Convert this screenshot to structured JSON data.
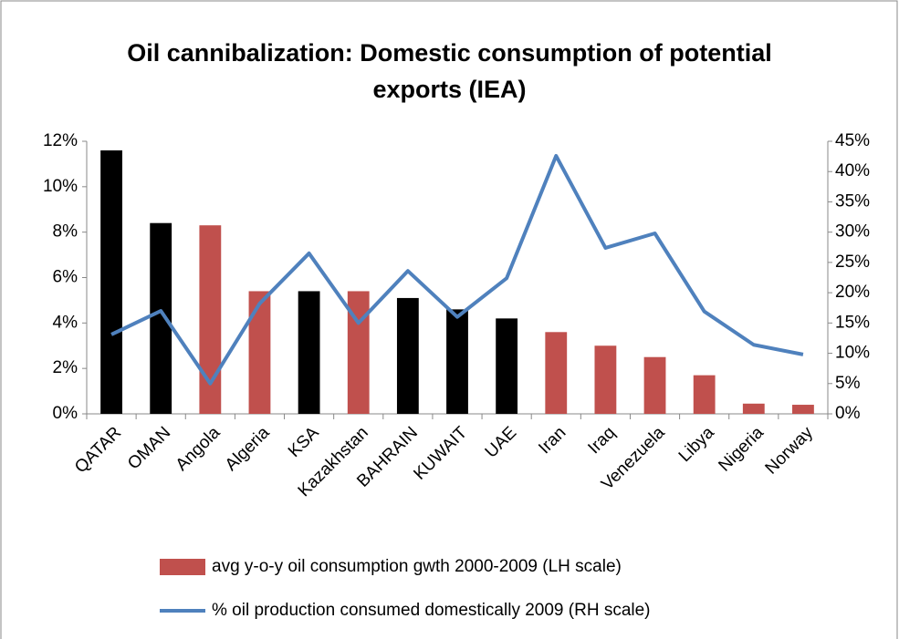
{
  "chart_data": {
    "type": "bar-line",
    "title": "Oil cannibalization: Domestic consumption of potential exports (IEA)",
    "categories": [
      "QATAR",
      "OMAN",
      "Angola",
      "Algeria",
      "KSA",
      "Kazakhstan",
      "BAHRAIN",
      "KUWAIT",
      "UAE",
      "Iran",
      "Iraq",
      "Venezuela",
      "Libya",
      "Nigeria",
      "Norway"
    ],
    "series": [
      {
        "name": "avg y-o-y oil consumption gwth 2000-2009 (LH scale)",
        "type": "bar",
        "color": "#c0504d",
        "colors": [
          "#000000",
          "#000000",
          "#c0504d",
          "#c0504d",
          "#000000",
          "#c0504d",
          "#000000",
          "#000000",
          "#000000",
          "#c0504d",
          "#c0504d",
          "#c0504d",
          "#c0504d",
          "#c0504d",
          "#c0504d"
        ],
        "values": [
          11.6,
          8.4,
          8.3,
          5.4,
          5.4,
          5.4,
          5.1,
          4.6,
          4.2,
          3.6,
          3.0,
          2.5,
          1.7,
          0.45,
          0.4
        ]
      },
      {
        "name": "% oil production consumed domestically 2009 (RH scale)",
        "type": "line",
        "axis": "y2",
        "color": "#4f81bd",
        "values": [
          13.1,
          17,
          5,
          18.2,
          26.5,
          15,
          23.6,
          16,
          22.4,
          42.6,
          27.4,
          29.8,
          16.9,
          11.4,
          9.8
        ]
      }
    ],
    "ylim": [
      0,
      12
    ],
    "yticks": [
      {
        "value": 0,
        "label": "0%"
      },
      {
        "value": 2,
        "label": "2%"
      },
      {
        "value": 4,
        "label": "4%"
      },
      {
        "value": 6,
        "label": "6%"
      },
      {
        "value": 8,
        "label": "8%"
      },
      {
        "value": 10,
        "label": "10%"
      },
      {
        "value": 12,
        "label": "12%"
      }
    ],
    "y2lim": [
      0,
      45
    ],
    "y2ticks": [
      {
        "value": 0,
        "label": "0%"
      },
      {
        "value": 5,
        "label": "5%"
      },
      {
        "value": 10,
        "label": "10%"
      },
      {
        "value": 15,
        "label": "15%"
      },
      {
        "value": 20,
        "label": "20%"
      },
      {
        "value": 25,
        "label": "25%"
      },
      {
        "value": 30,
        "label": "30%"
      },
      {
        "value": 35,
        "label": "35%"
      },
      {
        "value": 40,
        "label": "40%"
      },
      {
        "value": 45,
        "label": "45%"
      }
    ],
    "grid": false,
    "legend": "bottom"
  }
}
